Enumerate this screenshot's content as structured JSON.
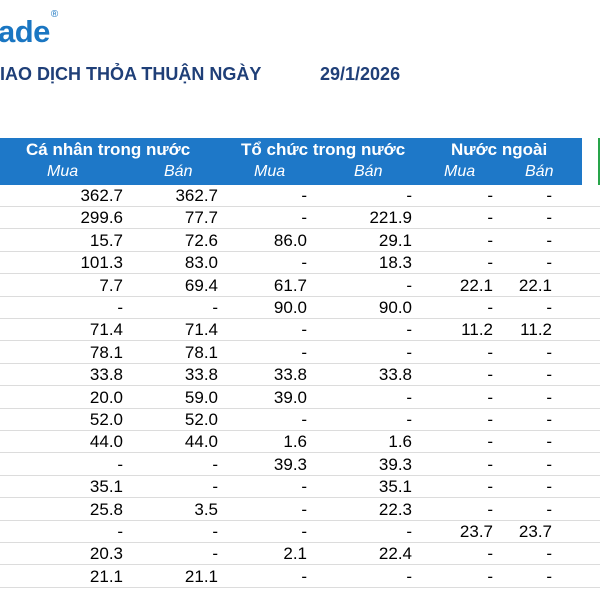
{
  "logo": {
    "text": "ade",
    "mark": "®"
  },
  "title": "IAO DỊCH THỎA THUẬN NGÀY",
  "date": "29/1/2026",
  "header": {
    "groups": [
      "Cá nhân trong nước",
      "Tổ chức trong nước",
      "Nước ngoài"
    ],
    "subs": [
      "Mua",
      "Bán",
      "Mua",
      "Bán",
      "Mua",
      "Bán"
    ]
  },
  "rows": [
    [
      "362.7",
      "362.7",
      "-",
      "-",
      "-",
      "-"
    ],
    [
      "299.6",
      "77.7",
      "-",
      "221.9",
      "-",
      "-"
    ],
    [
      "15.7",
      "72.6",
      "86.0",
      "29.1",
      "-",
      "-"
    ],
    [
      "101.3",
      "83.0",
      "-",
      "18.3",
      "-",
      "-"
    ],
    [
      "7.7",
      "69.4",
      "61.7",
      "-",
      "22.1",
      "22.1"
    ],
    [
      "-",
      "-",
      "90.0",
      "90.0",
      "-",
      "-"
    ],
    [
      "71.4",
      "71.4",
      "-",
      "-",
      "11.2",
      "11.2"
    ],
    [
      "78.1",
      "78.1",
      "-",
      "-",
      "-",
      "-"
    ],
    [
      "33.8",
      "33.8",
      "33.8",
      "33.8",
      "-",
      "-"
    ],
    [
      "20.0",
      "59.0",
      "39.0",
      "-",
      "-",
      "-"
    ],
    [
      "52.0",
      "52.0",
      "-",
      "-",
      "-",
      "-"
    ],
    [
      "44.0",
      "44.0",
      "1.6",
      "1.6",
      "-",
      "-"
    ],
    [
      "-",
      "-",
      "39.3",
      "39.3",
      "-",
      "-"
    ],
    [
      "35.1",
      "-",
      "-",
      "35.1",
      "-",
      "-"
    ],
    [
      "25.8",
      "3.5",
      "-",
      "22.3",
      "-",
      "-"
    ],
    [
      "-",
      "-",
      "-",
      "-",
      "23.7",
      "23.7"
    ],
    [
      "20.3",
      "-",
      "2.1",
      "22.4",
      "-",
      "-"
    ],
    [
      "21.1",
      "21.1",
      "-",
      "-",
      "-",
      "-"
    ]
  ]
}
